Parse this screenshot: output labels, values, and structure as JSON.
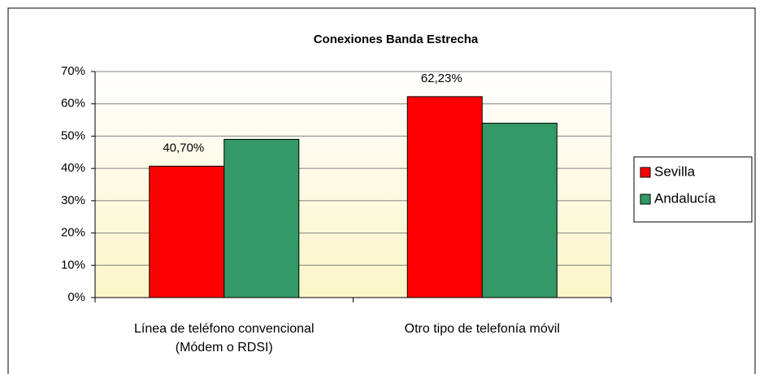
{
  "chart_data": {
    "type": "bar",
    "title": "Conexiones Banda Estrecha",
    "categories": [
      "Línea de teléfono convencional (Módem o RDSI)",
      "Otro tipo de telefonía móvil"
    ],
    "series": [
      {
        "name": "Sevilla",
        "color": "#ff0000",
        "values": [
          40.7,
          62.23
        ],
        "value_labels": [
          "40,70%",
          "62,23%"
        ]
      },
      {
        "name": "Andalucía",
        "color": "#339966",
        "values": [
          49,
          54
        ]
      }
    ],
    "ylim": [
      0,
      70
    ],
    "yticks": [
      {
        "value": 0,
        "label": "0%"
      },
      {
        "value": 10,
        "label": "10%"
      },
      {
        "value": 20,
        "label": "20%"
      },
      {
        "value": 30,
        "label": "30%"
      },
      {
        "value": 40,
        "label": "40%"
      },
      {
        "value": 50,
        "label": "50%"
      },
      {
        "value": 60,
        "label": "60%"
      },
      {
        "value": 70,
        "label": "70%"
      }
    ],
    "grid": true,
    "legend": "right"
  }
}
